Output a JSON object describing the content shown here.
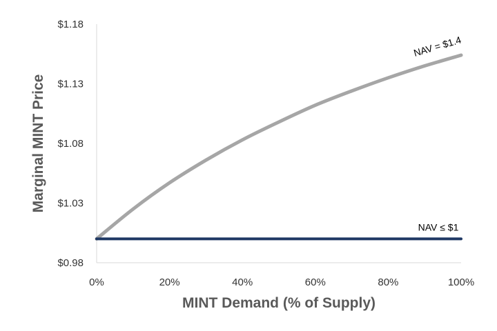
{
  "chart_data": {
    "type": "line",
    "title": "",
    "xlabel": "MINT Demand (% of Supply)",
    "ylabel": "Marginal MINT Price",
    "xlim": [
      0,
      1
    ],
    "ylim": [
      0.98,
      1.18
    ],
    "x_ticks": [
      0,
      0.2,
      0.4,
      0.6,
      0.8,
      1.0
    ],
    "x_tick_labels": [
      "0%",
      "20%",
      "40%",
      "60%",
      "80%",
      "100%"
    ],
    "y_ticks": [
      0.98,
      1.03,
      1.08,
      1.13,
      1.18
    ],
    "y_tick_labels": [
      "$0.98",
      "$1.03",
      "$1.08",
      "$1.13",
      "$1.18"
    ],
    "grid": false,
    "legend": "none",
    "series": [
      {
        "name": "NAV = $1.4",
        "color": "#a6a6a6",
        "x": [
          0,
          0.1,
          0.2,
          0.3,
          0.4,
          0.5,
          0.6,
          0.7,
          0.8,
          0.9,
          1.0
        ],
        "y": [
          1.0,
          1.025,
          1.047,
          1.066,
          1.083,
          1.098,
          1.112,
          1.124,
          1.135,
          1.145,
          1.154
        ]
      },
      {
        "name": "NAV ≤ $1",
        "color": "#1f3864",
        "x": [
          0,
          1.0
        ],
        "y": [
          1.0,
          1.0
        ]
      }
    ]
  }
}
